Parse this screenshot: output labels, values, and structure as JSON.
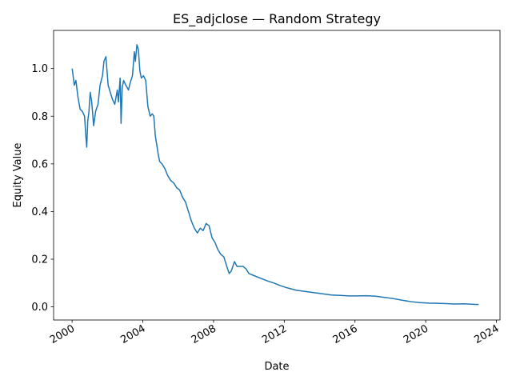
{
  "chart_data": {
    "type": "line",
    "title": "ES_adjclose — Random Strategy",
    "xlabel": "Date",
    "ylabel": "Equity Value",
    "xlim": [
      "1998-12-15",
      "2024-03-15"
    ],
    "ylim": [
      -0.055,
      1.16
    ],
    "x_ticks": [
      "2000",
      "2004",
      "2008",
      "2012",
      "2016",
      "2020",
      "2024"
    ],
    "y_ticks": [
      "0.0",
      "0.2",
      "0.4",
      "0.6",
      "0.8",
      "1.0"
    ],
    "grid": false,
    "legend": "none",
    "line_color": "#1f77b4",
    "series": [
      {
        "x": [
          "2000-01-03",
          "2000-02-15",
          "2000-03-20",
          "2000-05-01",
          "2000-06-15",
          "2000-08-01",
          "2000-09-15",
          "2000-10-10",
          "2000-10-30",
          "2000-11-20",
          "2000-12-15",
          "2001-01-10",
          "2001-02-10",
          "2001-03-22",
          "2001-05-01",
          "2001-06-20",
          "2001-08-01",
          "2001-09-21",
          "2001-10-20",
          "2001-11-30",
          "2002-01-15",
          "2002-03-01",
          "2002-04-15",
          "2002-06-01",
          "2002-07-23",
          "2002-08-15",
          "2002-09-20",
          "2002-10-09",
          "2002-11-01",
          "2002-12-01",
          "2003-01-15",
          "2003-03-11",
          "2003-04-15",
          "2003-06-01",
          "2003-07-10",
          "2003-08-01",
          "2003-09-01",
          "2003-10-01",
          "2003-11-01",
          "2003-12-01",
          "2004-01-15",
          "2004-03-01",
          "2004-04-15",
          "2004-06-01",
          "2004-07-15",
          "2004-08-15",
          "2004-09-15",
          "2004-10-15",
          "2004-11-15",
          "2004-12-15",
          "2005-02-01",
          "2005-04-01",
          "2005-06-01",
          "2005-08-01",
          "2005-10-01",
          "2005-12-01",
          "2006-02-01",
          "2006-04-01",
          "2006-06-01",
          "2006-08-01",
          "2006-10-01",
          "2006-12-01",
          "2007-02-01",
          "2007-04-01",
          "2007-06-01",
          "2007-08-01",
          "2007-10-01",
          "2007-12-01",
          "2008-02-01",
          "2008-04-01",
          "2008-06-01",
          "2008-08-01",
          "2008-10-01",
          "2008-11-20",
          "2009-01-01",
          "2009-03-09",
          "2009-05-01",
          "2009-07-01",
          "2009-09-01",
          "2009-11-01",
          "2010-01-01",
          "2010-05-01",
          "2010-09-01",
          "2011-01-01",
          "2011-06-01",
          "2011-10-01",
          "2012-03-01",
          "2012-09-01",
          "2013-03-01",
          "2013-09-01",
          "2014-03-01",
          "2014-09-01",
          "2015-03-01",
          "2015-09-01",
          "2016-03-01",
          "2016-09-01",
          "2017-03-01",
          "2017-09-01",
          "2018-03-01",
          "2018-09-01",
          "2019-03-01",
          "2019-09-01",
          "2020-03-01",
          "2020-09-01",
          "2021-03-01",
          "2021-09-01",
          "2022-03-01",
          "2022-09-01",
          "2022-12-30"
        ],
        "values": [
          1.0,
          0.93,
          0.95,
          0.88,
          0.83,
          0.82,
          0.8,
          0.72,
          0.67,
          0.78,
          0.82,
          0.9,
          0.86,
          0.76,
          0.82,
          0.85,
          0.93,
          0.97,
          1.03,
          1.05,
          0.93,
          0.9,
          0.87,
          0.85,
          0.91,
          0.86,
          0.96,
          0.77,
          0.92,
          0.95,
          0.93,
          0.91,
          0.94,
          0.97,
          1.07,
          1.03,
          1.1,
          1.08,
          0.99,
          0.96,
          0.97,
          0.95,
          0.84,
          0.8,
          0.81,
          0.8,
          0.72,
          0.68,
          0.64,
          0.61,
          0.6,
          0.58,
          0.55,
          0.53,
          0.52,
          0.5,
          0.49,
          0.46,
          0.44,
          0.4,
          0.36,
          0.33,
          0.31,
          0.33,
          0.32,
          0.35,
          0.34,
          0.29,
          0.27,
          0.24,
          0.22,
          0.21,
          0.17,
          0.14,
          0.15,
          0.19,
          0.17,
          0.17,
          0.17,
          0.16,
          0.14,
          0.13,
          0.12,
          0.11,
          0.1,
          0.09,
          0.08,
          0.07,
          0.065,
          0.06,
          0.055,
          0.05,
          0.048,
          0.046,
          0.046,
          0.047,
          0.045,
          0.04,
          0.035,
          0.028,
          0.022,
          0.018,
          0.016,
          0.015,
          0.014,
          0.012,
          0.013,
          0.011,
          0.01
        ]
      }
    ]
  }
}
